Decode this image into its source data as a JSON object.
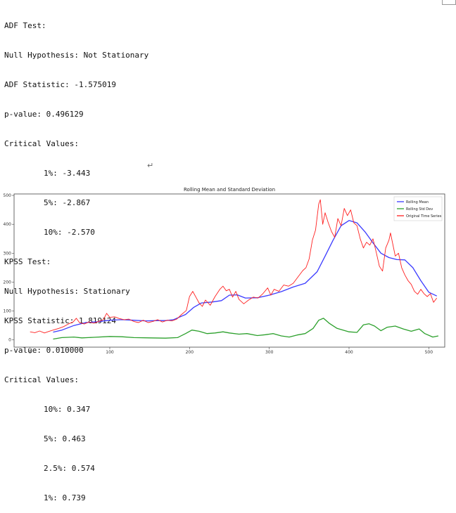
{
  "console": {
    "adf": {
      "header": "ADF Test:",
      "hypothesis": "Null Hypothesis: Not Stationary",
      "statistic": "ADF Statistic: -1.575019",
      "pvalue": "p-value: 0.496129",
      "critical_header": "Critical Values:",
      "critical": [
        "1%: -3.443",
        "5%: -2.867",
        "10%: -2.570"
      ]
    },
    "kpss": {
      "header": "KPSS Test:",
      "hypothesis": "Null Hypothesis: Stationary",
      "statistic": "KPSS Statistic: 1.819124",
      "pvalue": "p-value: 0.010000",
      "critical_header": "Critical Values:",
      "critical": [
        "10%: 0.347",
        "5%: 0.463",
        "2.5%: 0.574",
        "1%: 0.739"
      ]
    },
    "return_symbol": "↵"
  },
  "chart_data": {
    "type": "line",
    "title": "Rolling Mean and Standard Deviation",
    "xlabel": "",
    "ylabel": "",
    "xlim": [
      -20,
      520
    ],
    "ylim": [
      -25,
      505
    ],
    "xticks": [
      0,
      100,
      200,
      300,
      400,
      500
    ],
    "yticks": [
      0,
      100,
      200,
      300,
      400,
      500
    ],
    "legend_position": "top-right",
    "series": [
      {
        "name": "Rolling Mean",
        "color": "#3b3bff",
        "points": [
          [
            29,
            27
          ],
          [
            40,
            34
          ],
          [
            55,
            50
          ],
          [
            70,
            60
          ],
          [
            85,
            63
          ],
          [
            100,
            68
          ],
          [
            115,
            70
          ],
          [
            130,
            68
          ],
          [
            145,
            66
          ],
          [
            160,
            67
          ],
          [
            170,
            67
          ],
          [
            180,
            70
          ],
          [
            195,
            88
          ],
          [
            205,
            112
          ],
          [
            215,
            128
          ],
          [
            228,
            131
          ],
          [
            240,
            136
          ],
          [
            250,
            155
          ],
          [
            260,
            156
          ],
          [
            270,
            145
          ],
          [
            285,
            146
          ],
          [
            300,
            155
          ],
          [
            315,
            167
          ],
          [
            330,
            183
          ],
          [
            345,
            196
          ],
          [
            360,
            236
          ],
          [
            370,
            290
          ],
          [
            380,
            345
          ],
          [
            390,
            395
          ],
          [
            400,
            413
          ],
          [
            410,
            405
          ],
          [
            420,
            374
          ],
          [
            430,
            336
          ],
          [
            440,
            300
          ],
          [
            450,
            285
          ],
          [
            460,
            278
          ],
          [
            470,
            277
          ],
          [
            480,
            250
          ],
          [
            490,
            205
          ],
          [
            500,
            165
          ],
          [
            510,
            152
          ]
        ]
      },
      {
        "name": "Rolling Std Dev",
        "color": "#2ca02c",
        "points": [
          [
            29,
            3
          ],
          [
            40,
            8
          ],
          [
            55,
            10
          ],
          [
            65,
            7
          ],
          [
            80,
            9
          ],
          [
            100,
            12
          ],
          [
            115,
            11
          ],
          [
            130,
            8
          ],
          [
            150,
            7
          ],
          [
            170,
            6
          ],
          [
            185,
            8
          ],
          [
            195,
            22
          ],
          [
            203,
            34
          ],
          [
            212,
            30
          ],
          [
            222,
            22
          ],
          [
            232,
            24
          ],
          [
            242,
            28
          ],
          [
            250,
            24
          ],
          [
            262,
            20
          ],
          [
            272,
            22
          ],
          [
            285,
            15
          ],
          [
            295,
            18
          ],
          [
            305,
            22
          ],
          [
            315,
            14
          ],
          [
            325,
            10
          ],
          [
            335,
            17
          ],
          [
            345,
            22
          ],
          [
            355,
            40
          ],
          [
            362,
            68
          ],
          [
            368,
            75
          ],
          [
            375,
            58
          ],
          [
            385,
            40
          ],
          [
            400,
            28
          ],
          [
            410,
            26
          ],
          [
            418,
            52
          ],
          [
            425,
            56
          ],
          [
            432,
            48
          ],
          [
            440,
            32
          ],
          [
            448,
            44
          ],
          [
            458,
            48
          ],
          [
            468,
            38
          ],
          [
            478,
            30
          ],
          [
            488,
            38
          ],
          [
            495,
            22
          ],
          [
            505,
            10
          ],
          [
            512,
            14
          ]
        ]
      },
      {
        "name": "Original Time Series",
        "color": "#ff2020",
        "points": [
          [
            0,
            28
          ],
          [
            6,
            25
          ],
          [
            12,
            31
          ],
          [
            18,
            24
          ],
          [
            24,
            30
          ],
          [
            30,
            35
          ],
          [
            36,
            40
          ],
          [
            42,
            46
          ],
          [
            48,
            55
          ],
          [
            54,
            62
          ],
          [
            58,
            75
          ],
          [
            62,
            60
          ],
          [
            68,
            55
          ],
          [
            74,
            62
          ],
          [
            80,
            58
          ],
          [
            86,
            64
          ],
          [
            92,
            70
          ],
          [
            96,
            92
          ],
          [
            100,
            78
          ],
          [
            106,
            80
          ],
          [
            112,
            74
          ],
          [
            118,
            70
          ],
          [
            124,
            72
          ],
          [
            130,
            64
          ],
          [
            136,
            60
          ],
          [
            142,
            68
          ],
          [
            148,
            60
          ],
          [
            154,
            64
          ],
          [
            160,
            70
          ],
          [
            166,
            62
          ],
          [
            172,
            68
          ],
          [
            178,
            66
          ],
          [
            184,
            72
          ],
          [
            190,
            88
          ],
          [
            196,
            102
          ],
          [
            200,
            150
          ],
          [
            204,
            168
          ],
          [
            208,
            148
          ],
          [
            212,
            128
          ],
          [
            216,
            116
          ],
          [
            220,
            138
          ],
          [
            226,
            120
          ],
          [
            232,
            150
          ],
          [
            238,
            175
          ],
          [
            242,
            186
          ],
          [
            246,
            170
          ],
          [
            250,
            175
          ],
          [
            254,
            148
          ],
          [
            258,
            168
          ],
          [
            262,
            140
          ],
          [
            268,
            125
          ],
          [
            274,
            138
          ],
          [
            280,
            148
          ],
          [
            286,
            145
          ],
          [
            292,
            160
          ],
          [
            298,
            180
          ],
          [
            302,
            155
          ],
          [
            306,
            175
          ],
          [
            312,
            168
          ],
          [
            318,
            190
          ],
          [
            324,
            186
          ],
          [
            330,
            196
          ],
          [
            336,
            218
          ],
          [
            342,
            240
          ],
          [
            346,
            250
          ],
          [
            350,
            280
          ],
          [
            354,
            345
          ],
          [
            358,
            380
          ],
          [
            362,
            470
          ],
          [
            364,
            485
          ],
          [
            367,
            400
          ],
          [
            370,
            440
          ],
          [
            374,
            405
          ],
          [
            378,
            375
          ],
          [
            382,
            355
          ],
          [
            386,
            420
          ],
          [
            390,
            395
          ],
          [
            394,
            455
          ],
          [
            398,
            430
          ],
          [
            402,
            450
          ],
          [
            406,
            405
          ],
          [
            410,
            395
          ],
          [
            414,
            350
          ],
          [
            418,
            318
          ],
          [
            422,
            338
          ],
          [
            426,
            328
          ],
          [
            430,
            350
          ],
          [
            434,
            305
          ],
          [
            438,
            255
          ],
          [
            442,
            238
          ],
          [
            446,
            318
          ],
          [
            450,
            345
          ],
          [
            452,
            370
          ],
          [
            455,
            330
          ],
          [
            458,
            290
          ],
          [
            462,
            300
          ],
          [
            466,
            250
          ],
          [
            470,
            225
          ],
          [
            474,
            205
          ],
          [
            478,
            192
          ],
          [
            482,
            168
          ],
          [
            486,
            158
          ],
          [
            490,
            175
          ],
          [
            494,
            160
          ],
          [
            498,
            150
          ],
          [
            502,
            160
          ],
          [
            506,
            130
          ],
          [
            510,
            145
          ]
        ]
      }
    ]
  }
}
